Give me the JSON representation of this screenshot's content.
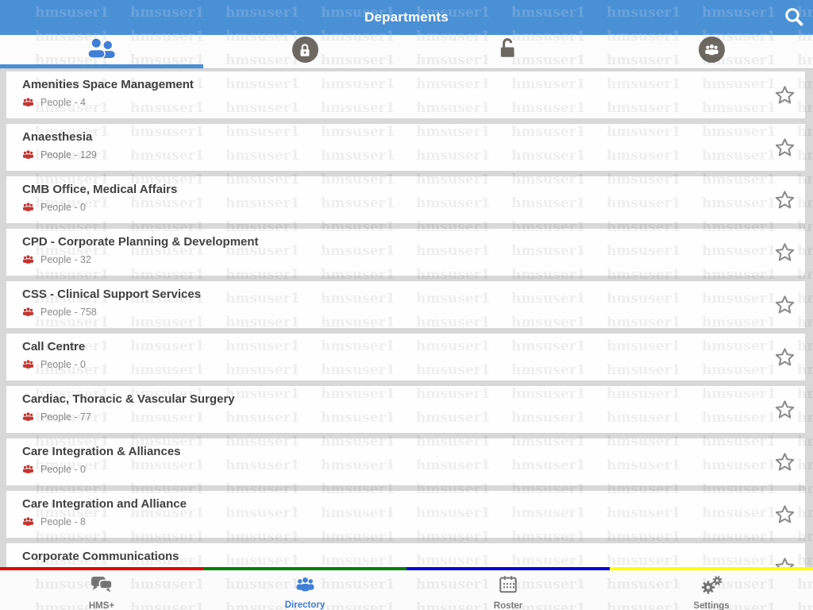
{
  "header": {
    "title": "Departments",
    "search_icon": "search-icon"
  },
  "watermark": {
    "text": "hmsuser1"
  },
  "tabs": [
    {
      "icon": "people-icon",
      "active": true
    },
    {
      "icon": "lock-closed-icon",
      "active": false
    },
    {
      "icon": "lock-open-icon",
      "active": false
    },
    {
      "icon": "group-circle-icon",
      "active": false
    }
  ],
  "departments": {
    "items": [
      {
        "name": "Amenities Space Management",
        "people_label": "People - 4"
      },
      {
        "name": "Anaesthesia",
        "people_label": "People - 129"
      },
      {
        "name": "CMB Office, Medical Affairs",
        "people_label": "People - 0"
      },
      {
        "name": "CPD - Corporate Planning & Development",
        "people_label": "People - 32"
      },
      {
        "name": "CSS - Clinical Support Services",
        "people_label": "People - 758"
      },
      {
        "name": "Call Centre",
        "people_label": "People - 0"
      },
      {
        "name": "Cardiac, Thoracic & Vascular Surgery",
        "people_label": "People - 77"
      },
      {
        "name": "Care Integration & Alliances",
        "people_label": "People - 0"
      },
      {
        "name": "Care Integration and Alliance",
        "people_label": "People - 8"
      },
      {
        "name": "Corporate Communications",
        "people_label": ""
      }
    ]
  },
  "bottom_nav": {
    "items": [
      {
        "label": "HMS+",
        "icon": "chat-icon",
        "active": false
      },
      {
        "label": "Directory",
        "icon": "people-icon",
        "active": true
      },
      {
        "label": "Roster",
        "icon": "calendar-icon",
        "active": false
      },
      {
        "label": "Settings",
        "icon": "gears-icon",
        "active": false
      }
    ]
  },
  "colors": {
    "header_blue": "#4a90d5",
    "accent_blue": "#3f7fd8",
    "people_icon_red": "#c4342f",
    "stripe_red": "#e60000",
    "stripe_green": "#008000",
    "stripe_blue": "#0000dd",
    "stripe_yellow": "#ffff00"
  }
}
